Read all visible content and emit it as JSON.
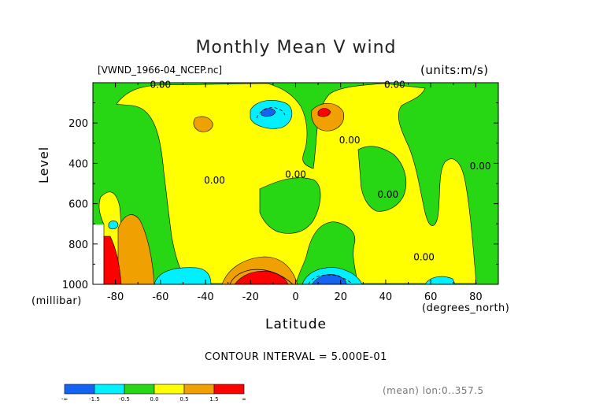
{
  "chart_data": {
    "type": "heatmap",
    "title": "Monthly Mean V wind",
    "file_label": "[VWND_1966-04_NCEP.nc]",
    "units_label": "(units:m/s)",
    "xlabel": "Latitude",
    "x_unit_label": "(degrees_north)",
    "ylabel": "Level",
    "y_unit_label": "(millibar)",
    "xlim": [
      -90,
      90
    ],
    "ylim": [
      1000,
      0
    ],
    "x_ticks": [
      -80,
      -60,
      -40,
      -20,
      0,
      20,
      40,
      60,
      80
    ],
    "y_ticks": [
      200,
      400,
      600,
      800,
      1000
    ],
    "contour_interval_text": "CONTOUR INTERVAL = 5.000E-01",
    "contour_labels": [
      {
        "text": "0.00",
        "lat": -60,
        "level": 25
      },
      {
        "text": "0.00",
        "lat": 44,
        "level": 25
      },
      {
        "text": "0.00",
        "lat": -36,
        "level": 500
      },
      {
        "text": "0.00",
        "lat": 0,
        "level": 470
      },
      {
        "text": "0.00",
        "lat": 24,
        "level": 300
      },
      {
        "text": "0.00",
        "lat": 41,
        "level": 570
      },
      {
        "text": "0.00",
        "lat": 57,
        "level": 880
      },
      {
        "text": "0.00",
        "lat": 82,
        "level": 430
      }
    ],
    "colorbar": {
      "colors": [
        "#1464f4",
        "#00f0ff",
        "#28d714",
        "#ffff00",
        "#f0a000",
        "#ff0000"
      ],
      "tick_labels": [
        "-∞",
        "-1.5",
        "-0.5",
        "0.0",
        "0.5",
        "1.5",
        "∞"
      ]
    },
    "footer_text": "(mean) lon:0..357.5",
    "colors": {
      "green": "#28d714",
      "yellow": "#ffff00",
      "orange": "#f0a000",
      "red": "#ff0000",
      "cyan": "#00f0ff",
      "blue": "#1464f4"
    }
  }
}
